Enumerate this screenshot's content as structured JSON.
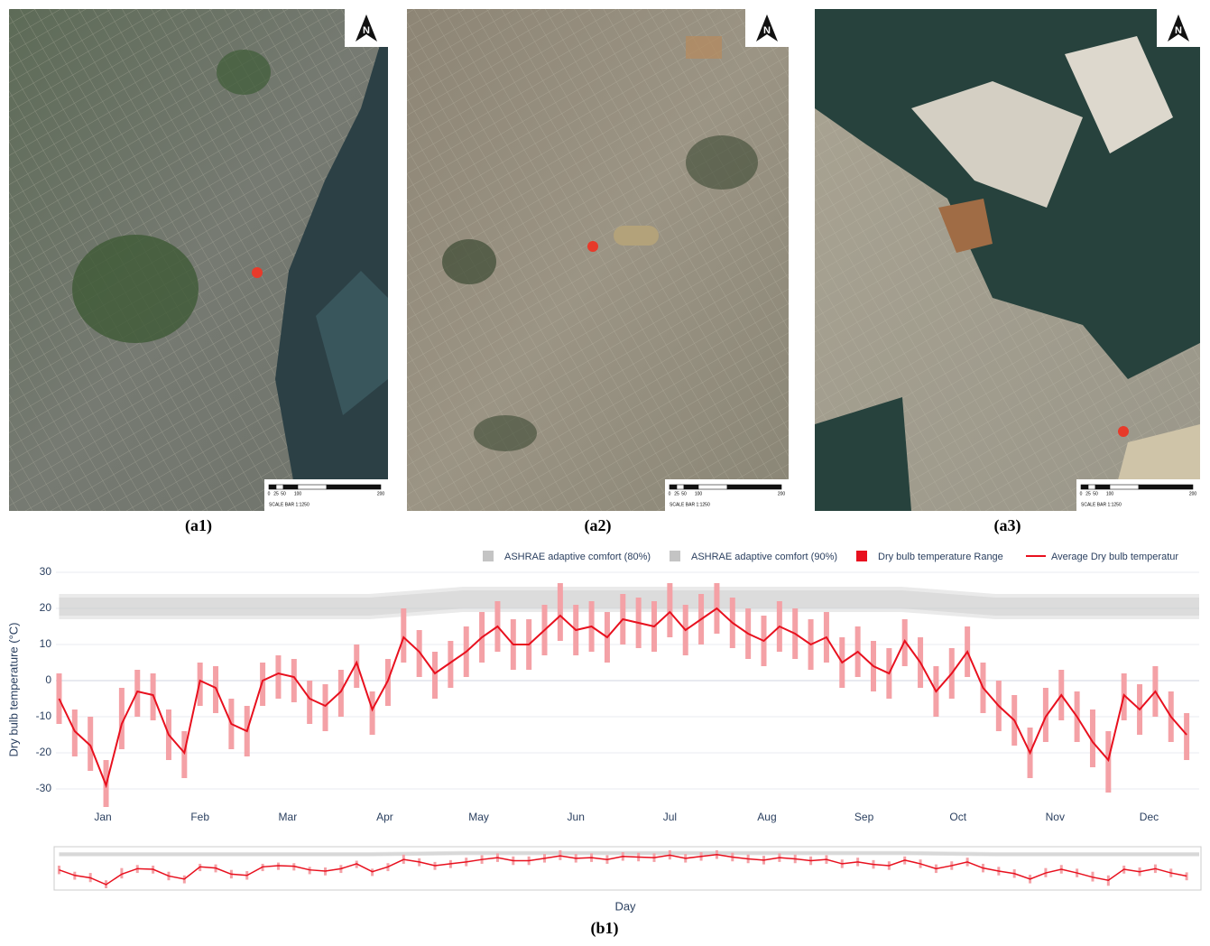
{
  "maps": [
    {
      "label": "(a1)",
      "north": "N",
      "scale_text": "SCALE BAR 1:1250",
      "scale_ticks": [
        "0",
        "25",
        "50",
        "100",
        "200"
      ]
    },
    {
      "label": "(a2)",
      "north": "N",
      "scale_text": "SCALE BAR 1:1250",
      "scale_ticks": [
        "0",
        "25",
        "50",
        "100",
        "200"
      ]
    },
    {
      "label": "(a3)",
      "north": "N",
      "scale_text": "SCALE BAR 1:1250",
      "scale_ticks": [
        "0",
        "25",
        "50",
        "100",
        "200"
      ]
    }
  ],
  "chart_data": {
    "type": "range",
    "label": "(b1)",
    "y_label": "Dry bulb temperature (°C)",
    "x_label": "Day",
    "xlim": [
      0,
      365
    ],
    "xticks": [
      {
        "value": 15,
        "label": "Jan"
      },
      {
        "value": 46,
        "label": "Feb"
      },
      {
        "value": 74,
        "label": "Mar"
      },
      {
        "value": 105,
        "label": "Apr"
      },
      {
        "value": 135,
        "label": "May"
      },
      {
        "value": 166,
        "label": "Jun"
      },
      {
        "value": 196,
        "label": "Jul"
      },
      {
        "value": 227,
        "label": "Aug"
      },
      {
        "value": 258,
        "label": "Sep"
      },
      {
        "value": 288,
        "label": "Oct"
      },
      {
        "value": 319,
        "label": "Nov"
      },
      {
        "value": 349,
        "label": "Dec"
      }
    ],
    "ylim": [
      -35,
      30
    ],
    "yticks": [
      -30,
      -20,
      -10,
      0,
      10,
      20,
      30
    ],
    "grid": true,
    "x": [
      1,
      6,
      11,
      16,
      21,
      26,
      31,
      36,
      41,
      46,
      51,
      56,
      61,
      66,
      71,
      76,
      81,
      86,
      91,
      96,
      101,
      106,
      111,
      116,
      121,
      126,
      131,
      136,
      141,
      146,
      151,
      156,
      161,
      166,
      171,
      176,
      181,
      186,
      191,
      196,
      201,
      206,
      211,
      216,
      221,
      226,
      231,
      236,
      241,
      246,
      251,
      256,
      261,
      266,
      271,
      276,
      281,
      286,
      291,
      296,
      301,
      306,
      311,
      316,
      321,
      326,
      331,
      336,
      341,
      346,
      351,
      356,
      361
    ],
    "series": [
      {
        "name": "ASHRAE adaptive comfort (80%)",
        "type": "band",
        "color": "#c4c4c4",
        "x": [
          1,
          100,
          130,
          270,
          300,
          365
        ],
        "lower": [
          17,
          17,
          19,
          19,
          17,
          17
        ],
        "upper": [
          24,
          24,
          26,
          26,
          24,
          24
        ]
      },
      {
        "name": "ASHRAE adaptive comfort (90%)",
        "type": "band",
        "color": "#c4c4c4",
        "x": [
          1,
          100,
          130,
          270,
          300,
          365
        ],
        "lower": [
          18,
          18,
          20,
          20,
          18,
          18
        ],
        "upper": [
          23,
          23,
          25,
          25,
          23,
          23
        ]
      },
      {
        "name": "Dry bulb temperature Range",
        "type": "range",
        "color": "#f4a1a6",
        "low": [
          -12,
          -21,
          -25,
          -35,
          -19,
          -10,
          -11,
          -22,
          -27,
          -7,
          -9,
          -19,
          -21,
          -7,
          -5,
          -6,
          -12,
          -14,
          -10,
          -2,
          -15,
          -7,
          5,
          1,
          -5,
          -2,
          1,
          5,
          8,
          3,
          3,
          7,
          11,
          7,
          8,
          5,
          10,
          9,
          8,
          12,
          7,
          10,
          13,
          9,
          6,
          4,
          8,
          6,
          3,
          5,
          -2,
          1,
          -3,
          -5,
          4,
          -2,
          -10,
          -5,
          1,
          -9,
          -14,
          -18,
          -27,
          -17,
          -11,
          -17,
          -24,
          -31,
          -11,
          -15,
          -10,
          -17,
          -22
        ],
        "high": [
          2,
          -8,
          -10,
          -22,
          -2,
          3,
          2,
          -8,
          -14,
          5,
          4,
          -5,
          -7,
          5,
          7,
          6,
          0,
          -1,
          3,
          10,
          -3,
          6,
          20,
          14,
          8,
          11,
          15,
          19,
          22,
          17,
          17,
          21,
          27,
          21,
          22,
          19,
          24,
          23,
          22,
          27,
          21,
          24,
          27,
          23,
          20,
          18,
          22,
          20,
          17,
          19,
          12,
          15,
          11,
          9,
          17,
          12,
          4,
          9,
          15,
          5,
          0,
          -4,
          -13,
          -2,
          3,
          -3,
          -8,
          -14,
          2,
          -1,
          4,
          -3,
          -9
        ]
      },
      {
        "name": "Average Dry bulb temperatur",
        "type": "line",
        "color": "#e8101e",
        "values": [
          -5,
          -14,
          -18,
          -29,
          -12,
          -3,
          -4,
          -15,
          -20,
          0,
          -2,
          -12,
          -14,
          0,
          2,
          1,
          -5,
          -7,
          -3,
          5,
          -8,
          0,
          12,
          8,
          2,
          5,
          8,
          12,
          15,
          10,
          10,
          14,
          18,
          14,
          15,
          12,
          17,
          16,
          15,
          19,
          14,
          17,
          20,
          16,
          13,
          11,
          15,
          13,
          10,
          12,
          5,
          8,
          4,
          2,
          11,
          5,
          -3,
          2,
          8,
          -2,
          -7,
          -11,
          -20,
          -10,
          -4,
          -10,
          -17,
          -22,
          -4,
          -8,
          -3,
          -10,
          -15
        ]
      }
    ]
  }
}
